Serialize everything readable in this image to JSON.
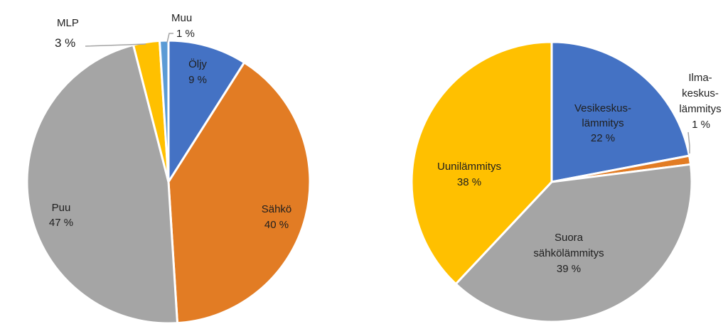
{
  "chart_data": [
    {
      "type": "pie",
      "slices": [
        {
          "key": "oljy",
          "name": "Öljy",
          "value": 9,
          "value_label": "9 %",
          "color": "#4472C4"
        },
        {
          "key": "sahko",
          "name": "Sähkö",
          "value": 40,
          "value_label": "40 %",
          "color": "#E27C24"
        },
        {
          "key": "puu",
          "name": "Puu",
          "value": 47,
          "value_label": "47 %",
          "color": "#A5A5A5"
        },
        {
          "key": "mlp",
          "name": "MLP",
          "value": 3,
          "value_label": "3  %",
          "color": "#FFC000"
        },
        {
          "key": "muu",
          "name": "Muu",
          "value": 1,
          "value_label": "1 %",
          "color": "#5B9BD5"
        }
      ]
    },
    {
      "type": "pie",
      "slices": [
        {
          "key": "vesi",
          "name_lines": [
            "Vesikeskus-",
            "lämmitys"
          ],
          "value": 22,
          "value_label": "22 %",
          "color": "#4472C4"
        },
        {
          "key": "ilma",
          "name_lines": [
            "Ilma-",
            "keskus-",
            "lämmitys"
          ],
          "value": 1,
          "value_label": "1 %",
          "color": "#E27C24"
        },
        {
          "key": "suora",
          "name_lines": [
            "Suora",
            "sähkölämmitys"
          ],
          "value": 39,
          "value_label": "39 %",
          "color": "#A5A5A5"
        },
        {
          "key": "uuni",
          "name_lines": [
            "Uunilämmitys"
          ],
          "value": 38,
          "value_label": "38 %",
          "color": "#FFC000"
        }
      ]
    }
  ]
}
